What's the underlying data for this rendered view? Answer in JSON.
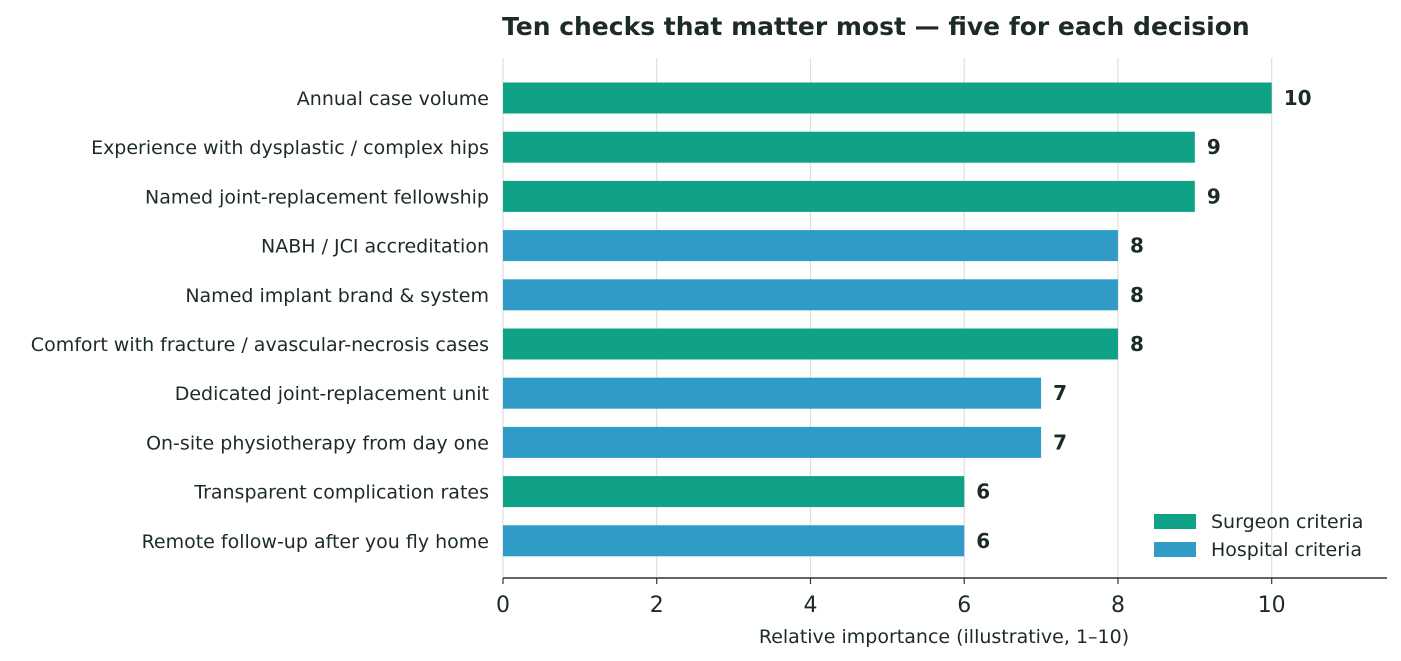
{
  "chart_data": {
    "type": "bar",
    "orientation": "horizontal",
    "title": "Ten checks that matter most — five for each decision",
    "xlabel": "Relative importance (illustrative, 1–10)",
    "ylabel": "",
    "xlim": [
      0,
      11.5
    ],
    "xticks": [
      "0",
      "2",
      "4",
      "6",
      "8",
      "10"
    ],
    "grid": "vertical",
    "legend_position": "bottom-right",
    "categories": [
      "Annual case volume",
      "Experience with dysplastic / complex hips",
      "Named joint-replacement fellowship",
      "NABH / JCI accreditation",
      "Named implant brand & system",
      "Comfort with fracture / avascular-necrosis cases",
      "Dedicated joint-replacement unit",
      "On-site physiotherapy from day one",
      "Transparent complication rates",
      "Remote follow-up after you fly home"
    ],
    "values": [
      10,
      9,
      9,
      8,
      8,
      8,
      7,
      7,
      6,
      6
    ],
    "groups": [
      "surgeon",
      "surgeon",
      "surgeon",
      "hospital",
      "hospital",
      "surgeon",
      "hospital",
      "hospital",
      "surgeon",
      "hospital"
    ],
    "legend": [
      {
        "key": "surgeon",
        "name": "Surgeon criteria",
        "color": "#10a286"
      },
      {
        "key": "hospital",
        "name": "Hospital criteria",
        "color": "#2f9bc6"
      }
    ]
  }
}
